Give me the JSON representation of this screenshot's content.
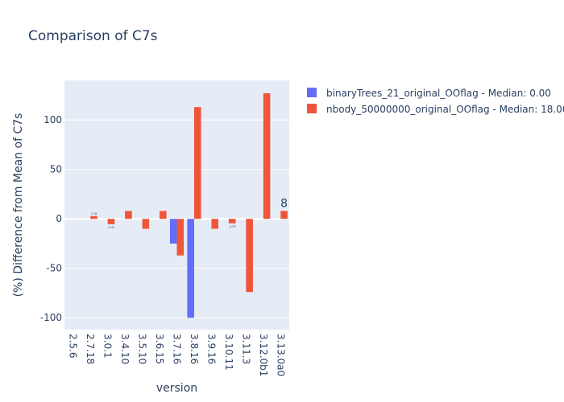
{
  "chart_data": {
    "type": "bar",
    "title": "Comparison of C7s",
    "xlabel": "version",
    "ylabel": "(%) Difference from Mean of C7s",
    "categories": [
      "2.5.6",
      "2.7.18",
      "3.0.1",
      "3.4.10",
      "3.5.10",
      "3.6.15",
      "3.7.16",
      "3.8.16",
      "3.9.16",
      "3.10.11",
      "3.11.3",
      "3.12.0b1",
      "3.13.0a0"
    ],
    "ylim": [
      -112,
      140
    ],
    "yticks": [
      -100,
      -50,
      0,
      50,
      100
    ],
    "grid": true,
    "legend_position": "top-right",
    "series": [
      {
        "name": "binaryTrees_21_original_OOflag - Median: 0.00",
        "color": "#636efa",
        "values": [
          null,
          null,
          null,
          null,
          null,
          null,
          -25,
          -100,
          null,
          null,
          null,
          null,
          null
        ],
        "labels": [
          null,
          null,
          null,
          null,
          null,
          null,
          "",
          "",
          null,
          null,
          null,
          null,
          null
        ]
      },
      {
        "name": "nbody_50000000_original_OOflag - Median: 18.00",
        "color": "#ef553b",
        "values": [
          null,
          2.78,
          -5.41,
          8,
          -10,
          8,
          -37,
          113,
          -10,
          -4.55,
          -74,
          127,
          8
        ],
        "labels": [
          null,
          "2.78",
          "-5.41",
          "",
          "",
          "",
          "",
          "",
          "",
          "-4.55",
          "",
          "",
          "8"
        ]
      }
    ]
  }
}
